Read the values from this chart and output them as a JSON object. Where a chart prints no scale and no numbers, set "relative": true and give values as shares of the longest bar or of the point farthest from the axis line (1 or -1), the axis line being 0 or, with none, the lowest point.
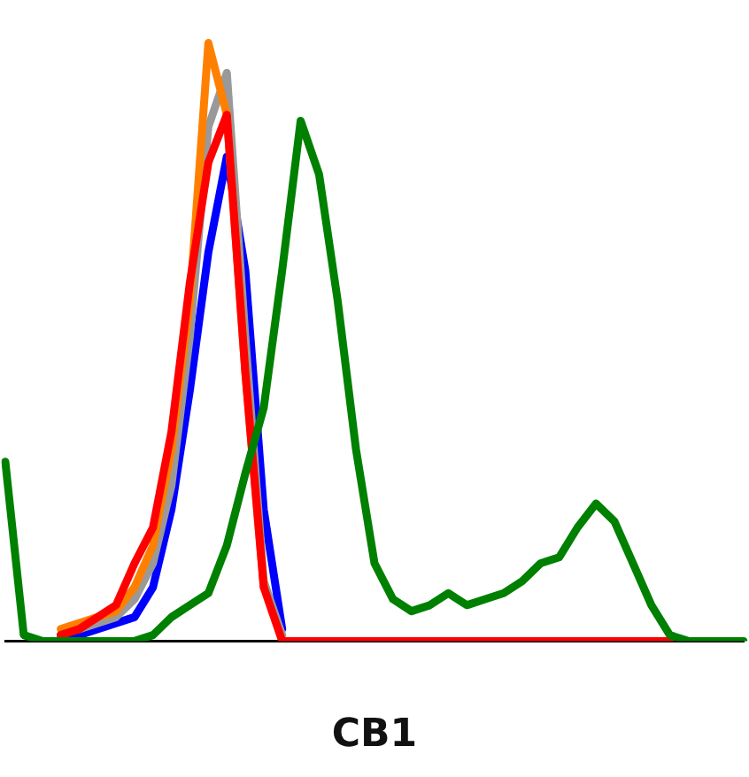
{
  "chart_data": {
    "type": "line",
    "relative": true,
    "xlabel": "CB1",
    "legend": false,
    "grid": false,
    "marker": "none",
    "line_style": "solid",
    "categories": [
      null,
      null,
      null,
      null,
      null,
      null,
      null,
      null,
      null,
      null,
      null,
      null,
      null,
      null,
      null,
      null,
      null,
      null,
      null,
      null,
      null,
      null,
      null,
      null,
      null,
      null,
      null,
      null,
      null,
      null,
      null,
      null,
      null,
      null,
      null,
      null,
      null,
      null,
      null,
      null,
      null
    ],
    "series": [
      {
        "color": "#008000",
        "values": [
          0.3,
          0.01,
          0,
          0,
          0,
          0,
          0,
          0,
          0.01,
          0.04,
          0.06,
          0.08,
          0.16,
          0.28,
          0.39,
          0.62,
          0.87,
          0.78,
          0.57,
          0.32,
          0.13,
          0.07,
          0.05,
          0.06,
          0.08,
          0.06,
          0.07,
          0.08,
          0.1,
          0.13,
          0.14,
          0.19,
          0.23,
          0.2,
          0.13,
          0.06,
          0.01,
          0,
          0,
          0,
          0
        ]
      },
      {
        "color": "#ff0000",
        "values": [
          null,
          null,
          null,
          0.01,
          0.02,
          0.04,
          0.06,
          0.13,
          0.19,
          0.35,
          0.6,
          0.8,
          0.88,
          0.45,
          0.09,
          0,
          0,
          0,
          0,
          0,
          0,
          0,
          0,
          0,
          0,
          0,
          0,
          0,
          0,
          0,
          0,
          0,
          0,
          0,
          0,
          0,
          0,
          null,
          null,
          null,
          null
        ]
      },
      {
        "color": "#ff8000",
        "values": [
          null,
          null,
          null,
          0.02,
          0.03,
          0.04,
          0.05,
          0.09,
          0.16,
          0.32,
          0.57,
          1,
          0.88,
          0.45,
          0.09,
          null,
          null,
          null,
          null,
          null,
          null,
          null,
          null,
          null,
          null,
          null,
          null,
          null,
          null,
          null,
          null,
          null,
          null,
          null,
          null,
          null,
          null,
          null,
          null,
          null,
          null
        ]
      },
      {
        "color": "#999999",
        "values": [
          null,
          null,
          null,
          null,
          0.02,
          0.03,
          0.04,
          0.07,
          0.13,
          0.26,
          0.51,
          0.86,
          0.95,
          0.51,
          0.1,
          0.01,
          null,
          null,
          null,
          null,
          null,
          null,
          null,
          null,
          null,
          null,
          null,
          null,
          null,
          null,
          null,
          null,
          null,
          null,
          null,
          null,
          null,
          null,
          null,
          null,
          null
        ]
      },
      {
        "color": "#0000ff",
        "values": [
          null,
          null,
          null,
          0.01,
          0.01,
          0.02,
          0.03,
          0.04,
          0.09,
          0.22,
          0.42,
          0.65,
          0.81,
          0.62,
          0.22,
          0.02,
          null,
          null,
          null,
          null,
          null,
          null,
          null,
          null,
          null,
          null,
          null,
          null,
          null,
          null,
          null,
          null,
          null,
          null,
          null,
          null,
          null,
          null,
          null,
          null,
          null
        ]
      }
    ]
  }
}
